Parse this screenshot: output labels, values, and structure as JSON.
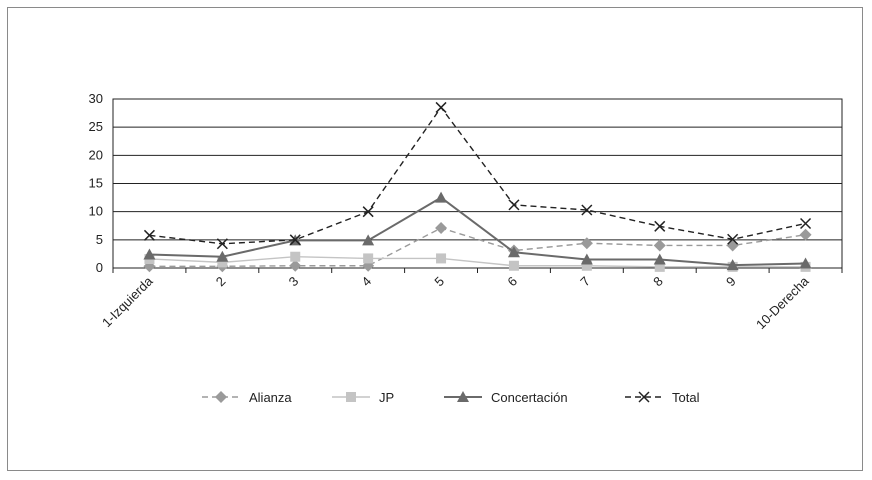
{
  "chart_data": {
    "type": "line",
    "categories": [
      "1-Izquierda",
      "2",
      "3",
      "4",
      "5",
      "6",
      "7",
      "8",
      "9",
      "10-Derecha"
    ],
    "ylim": [
      0,
      30
    ],
    "yticks": [
      0,
      5,
      10,
      15,
      20,
      25,
      30
    ],
    "grid": true,
    "legend_position": "bottom",
    "series": [
      {
        "name": "Alianza",
        "values": [
          0.3,
          0.3,
          0.4,
          0.4,
          7.1,
          3.1,
          4.4,
          4.0,
          4.0,
          5.9
        ],
        "color": "#9a9a9a",
        "marker": "diamond",
        "dash": "dashed"
      },
      {
        "name": "JP",
        "values": [
          1.6,
          1.0,
          2.0,
          1.7,
          1.7,
          0.4,
          0.4,
          0.2,
          0.2,
          0.2
        ],
        "color": "#c4c4c4",
        "marker": "square",
        "dash": "solid"
      },
      {
        "name": "Concertación",
        "values": [
          2.4,
          2.0,
          4.9,
          4.9,
          12.5,
          2.8,
          1.5,
          1.5,
          0.5,
          0.8
        ],
        "color": "#6a6a6a",
        "marker": "triangle",
        "dash": "solid"
      },
      {
        "name": "Total",
        "values": [
          5.8,
          4.3,
          5.0,
          10.0,
          28.5,
          11.2,
          10.3,
          7.4,
          5.1,
          7.9
        ],
        "color": "#222222",
        "marker": "x",
        "dash": "dashed"
      }
    ]
  }
}
